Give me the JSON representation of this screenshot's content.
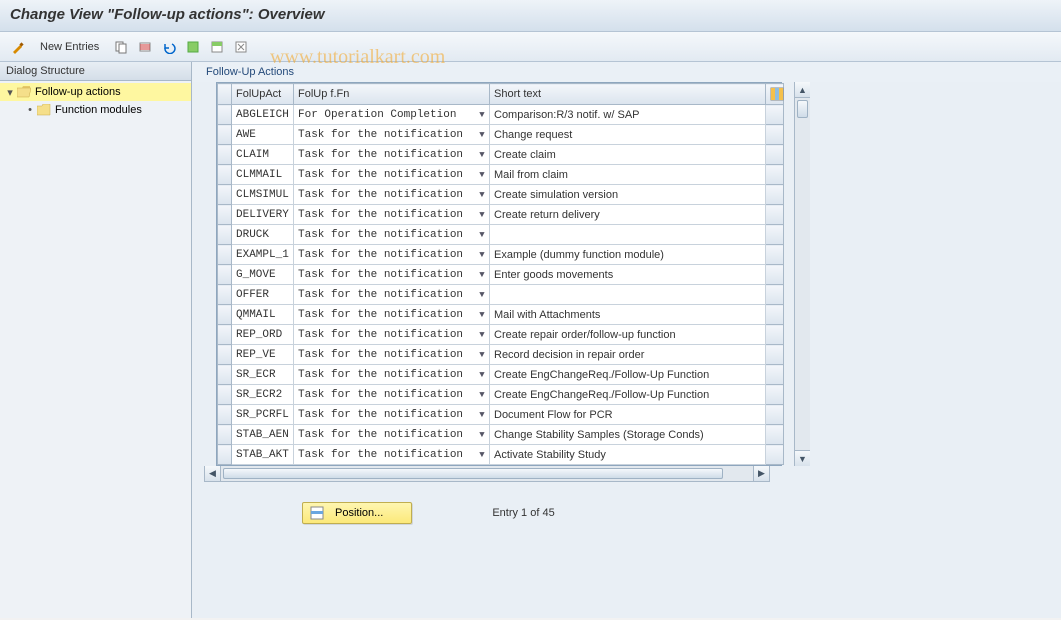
{
  "title": "Change View \"Follow-up actions\": Overview",
  "watermark": "www.tutorialkart.com",
  "toolbar": {
    "new_entries": "New Entries",
    "icons": [
      "pencil",
      "copy",
      "delete-row",
      "undo",
      "select-all",
      "select-block",
      "deselect"
    ]
  },
  "dialog_structure": {
    "header": "Dialog Structure",
    "items": [
      {
        "label": "Follow-up actions",
        "selected": true,
        "expanded": true
      },
      {
        "label": "Function modules",
        "selected": false,
        "child": true
      }
    ]
  },
  "panel": {
    "title": "Follow-Up Actions",
    "columns": {
      "c0_w": 14,
      "c1": "FolUpAct",
      "c1_w": 62,
      "c2": "FolUp f.Fn",
      "c2_w": 196,
      "c3": "Short text",
      "c3_w": 276,
      "cfg_w": 18
    },
    "rows": [
      {
        "code": "ABGLEICH",
        "fn": "For Operation Completion",
        "text": "Comparison:R/3 notif. w/ SAP"
      },
      {
        "code": "AWE",
        "fn": "Task for the notification",
        "text": "Change request"
      },
      {
        "code": "CLAIM",
        "fn": "Task for the notification",
        "text": "Create claim"
      },
      {
        "code": "CLMMAIL",
        "fn": "Task for the notification",
        "text": "Mail from claim"
      },
      {
        "code": "CLMSIMUL",
        "fn": "Task for the notification",
        "text": "Create simulation version"
      },
      {
        "code": "DELIVERY",
        "fn": "Task for the notification",
        "text": "Create return delivery"
      },
      {
        "code": "DRUCK",
        "fn": "Task for the notification",
        "text": ""
      },
      {
        "code": "EXAMPL_1",
        "fn": "Task for the notification",
        "text": "Example (dummy function module)"
      },
      {
        "code": "G_MOVE",
        "fn": "Task for the notification",
        "text": "Enter goods movements"
      },
      {
        "code": "OFFER",
        "fn": "Task for the notification",
        "text": ""
      },
      {
        "code": "QMMAIL",
        "fn": "Task for the notification",
        "text": "Mail with Attachments"
      },
      {
        "code": "REP_ORD",
        "fn": "Task for the notification",
        "text": "Create repair order/follow-up function"
      },
      {
        "code": "REP_VE",
        "fn": "Task for the notification",
        "text": "Record decision in repair order"
      },
      {
        "code": "SR_ECR",
        "fn": "Task for the notification",
        "text": "Create EngChangeReq./Follow-Up Function"
      },
      {
        "code": "SR_ECR2",
        "fn": "Task for the notification",
        "text": "Create EngChangeReq./Follow-Up Function"
      },
      {
        "code": "SR_PCRFL",
        "fn": "Task for the notification",
        "text": "Document Flow for PCR"
      },
      {
        "code": "STAB_AEN",
        "fn": "Task for the notification",
        "text": "Change Stability Samples (Storage Conds)"
      },
      {
        "code": "STAB_AKT",
        "fn": "Task for the notification",
        "text": "Activate Stability Study"
      }
    ]
  },
  "footer": {
    "position_btn": "Position...",
    "entry_text": "Entry 1 of 45"
  },
  "colors": {
    "header_grad_top": "#eef3f8",
    "header_grad_bot": "#d4e0ec",
    "border": "#a8b8c8",
    "selected_row": "#fef7a0",
    "code_bg": "#fffef2",
    "panel_bg": "#e9eff5"
  }
}
